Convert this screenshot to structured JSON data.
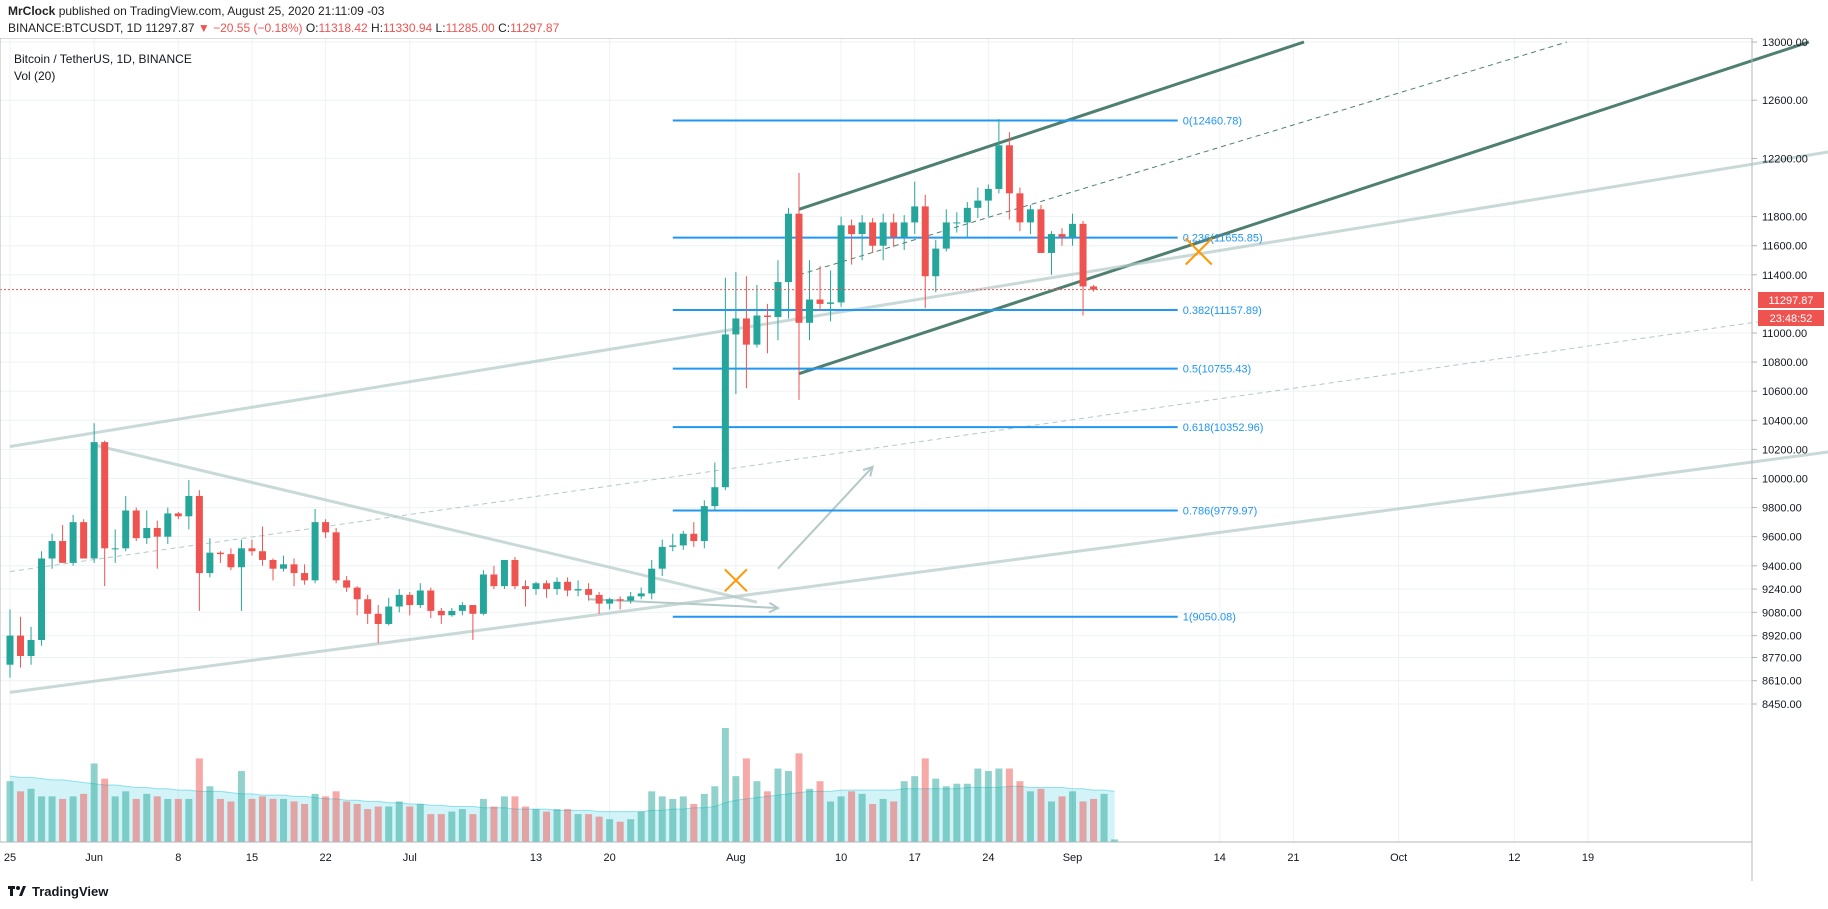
{
  "header": {
    "author": "MrClock",
    "published_text": "published on TradingView.com, August 25, 2020 21:11:09 -03",
    "symbol": "BINANCE:BTCUSDT, 1D",
    "last": "11297.87",
    "change": "▼ −20.55 (−0.18%)",
    "o_label": "O:",
    "o": "11318.42",
    "h_label": "H:",
    "h": "11330.94",
    "l_label": "L:",
    "l": "11285.00",
    "c_label": "C:",
    "c": "11297.87"
  },
  "legend": {
    "title": "Bitcoin / TetherUS, 1D, BINANCE",
    "volume": "Vol (20)"
  },
  "footer": {
    "brand": "TradingView"
  },
  "colors": {
    "up": "#26a69a",
    "down": "#ef5350",
    "fib": "#2196f3",
    "channel": "#4f7f70",
    "trend_light": "#b2c9c7",
    "vol_ma": "#4dd0e1",
    "marker": "#ff9800",
    "grid": "#eef2f5"
  },
  "chart_data": {
    "type": "candlestick",
    "price_axis": {
      "ylim": [
        8300,
        13050
      ],
      "ticks": [
        13000,
        12600,
        12200,
        11800,
        11600,
        11400,
        11000,
        10800,
        10600,
        10400,
        10200,
        10000,
        9800,
        9600,
        9400,
        9240,
        9080,
        8920,
        8770,
        8610,
        8450
      ],
      "tick_labels": [
        "13000.00",
        "12600.00",
        "12200.00",
        "11800.00",
        "11600.00",
        "11400.00",
        "11000.00",
        "10800.00",
        "10600.00",
        "10400.00",
        "10200.00",
        "10000.00",
        "9800.00",
        "9600.00",
        "9400.00",
        "9240.00",
        "9080.00",
        "8920.00",
        "8770.00",
        "8610.00",
        "8450.00"
      ],
      "last_price": 11297.87,
      "last_price_label": "11297.87",
      "countdown": "23:48:52"
    },
    "time_axis": {
      "labels": [
        "25",
        "Jun",
        "8",
        "15",
        "22",
        "Jul",
        "13",
        "20",
        "Aug",
        "10",
        "17",
        "24",
        "Sep",
        "14",
        "21",
        "Oct",
        "12",
        "19"
      ],
      "label_bars": [
        0,
        8,
        16,
        23,
        30,
        38,
        50,
        57,
        69,
        79,
        86,
        93,
        101,
        115,
        122,
        132,
        143,
        150
      ]
    },
    "candles": [
      {
        "o": 8720,
        "h": 9100,
        "l": 8630,
        "c": 8920
      },
      {
        "o": 8920,
        "h": 9050,
        "l": 8700,
        "c": 8780
      },
      {
        "o": 8780,
        "h": 8980,
        "l": 8720,
        "c": 8890
      },
      {
        "o": 8890,
        "h": 9500,
        "l": 8850,
        "c": 9450
      },
      {
        "o": 9450,
        "h": 9620,
        "l": 9380,
        "c": 9570
      },
      {
        "o": 9570,
        "h": 9680,
        "l": 9430,
        "c": 9420
      },
      {
        "o": 9420,
        "h": 9750,
        "l": 9400,
        "c": 9700
      },
      {
        "o": 9700,
        "h": 9720,
        "l": 9450,
        "c": 9450
      },
      {
        "o": 9450,
        "h": 10380,
        "l": 9420,
        "c": 10250
      },
      {
        "o": 10250,
        "h": 10260,
        "l": 9260,
        "c": 9520
      },
      {
        "o": 9520,
        "h": 9650,
        "l": 9420,
        "c": 9520
      },
      {
        "o": 9520,
        "h": 9880,
        "l": 9500,
        "c": 9780
      },
      {
        "o": 9780,
        "h": 9800,
        "l": 9570,
        "c": 9590
      },
      {
        "o": 9590,
        "h": 9780,
        "l": 9550,
        "c": 9660
      },
      {
        "o": 9660,
        "h": 9710,
        "l": 9380,
        "c": 9600
      },
      {
        "o": 9600,
        "h": 9800,
        "l": 9550,
        "c": 9760
      },
      {
        "o": 9760,
        "h": 9770,
        "l": 9720,
        "c": 9740
      },
      {
        "o": 9740,
        "h": 9990,
        "l": 9650,
        "c": 9880
      },
      {
        "o": 9880,
        "h": 9920,
        "l": 9090,
        "c": 9350
      },
      {
        "o": 9350,
        "h": 9590,
        "l": 9320,
        "c": 9490
      },
      {
        "o": 9490,
        "h": 9500,
        "l": 9420,
        "c": 9480
      },
      {
        "o": 9480,
        "h": 9520,
        "l": 9370,
        "c": 9390
      },
      {
        "o": 9390,
        "h": 9580,
        "l": 9090,
        "c": 9520
      },
      {
        "o": 9520,
        "h": 9580,
        "l": 9470,
        "c": 9500
      },
      {
        "o": 9500,
        "h": 9670,
        "l": 9400,
        "c": 9440
      },
      {
        "o": 9440,
        "h": 9450,
        "l": 9300,
        "c": 9380
      },
      {
        "o": 9380,
        "h": 9470,
        "l": 9360,
        "c": 9410
      },
      {
        "o": 9410,
        "h": 9450,
        "l": 9260,
        "c": 9350
      },
      {
        "o": 9350,
        "h": 9410,
        "l": 9270,
        "c": 9300
      },
      {
        "o": 9300,
        "h": 9790,
        "l": 9280,
        "c": 9700
      },
      {
        "o": 9700,
        "h": 9720,
        "l": 9590,
        "c": 9630
      },
      {
        "o": 9630,
        "h": 9660,
        "l": 9280,
        "c": 9300
      },
      {
        "o": 9300,
        "h": 9330,
        "l": 9220,
        "c": 9250
      },
      {
        "o": 9250,
        "h": 9260,
        "l": 9060,
        "c": 9170
      },
      {
        "o": 9170,
        "h": 9200,
        "l": 9000,
        "c": 9070
      },
      {
        "o": 9070,
        "h": 9130,
        "l": 8870,
        "c": 9000
      },
      {
        "o": 9000,
        "h": 9180,
        "l": 8990,
        "c": 9120
      },
      {
        "o": 9120,
        "h": 9240,
        "l": 9080,
        "c": 9200
      },
      {
        "o": 9200,
        "h": 9220,
        "l": 9060,
        "c": 9130
      },
      {
        "o": 9130,
        "h": 9280,
        "l": 9110,
        "c": 9230
      },
      {
        "o": 9230,
        "h": 9250,
        "l": 9040,
        "c": 9090
      },
      {
        "o": 9090,
        "h": 9110,
        "l": 9000,
        "c": 9060
      },
      {
        "o": 9060,
        "h": 9110,
        "l": 9050,
        "c": 9090
      },
      {
        "o": 9090,
        "h": 9150,
        "l": 9060,
        "c": 9130
      },
      {
        "o": 9130,
        "h": 9130,
        "l": 8890,
        "c": 9070
      },
      {
        "o": 9070,
        "h": 9370,
        "l": 9060,
        "c": 9340
      },
      {
        "o": 9340,
        "h": 9400,
        "l": 9240,
        "c": 9260
      },
      {
        "o": 9260,
        "h": 9440,
        "l": 9240,
        "c": 9440
      },
      {
        "o": 9440,
        "h": 9460,
        "l": 9240,
        "c": 9260
      },
      {
        "o": 9260,
        "h": 9300,
        "l": 9120,
        "c": 9240
      },
      {
        "o": 9240,
        "h": 9290,
        "l": 9200,
        "c": 9280
      },
      {
        "o": 9280,
        "h": 9300,
        "l": 9180,
        "c": 9240
      },
      {
        "o": 9240,
        "h": 9320,
        "l": 9200,
        "c": 9290
      },
      {
        "o": 9290,
        "h": 9320,
        "l": 9190,
        "c": 9230
      },
      {
        "o": 9230,
        "h": 9300,
        "l": 9190,
        "c": 9240
      },
      {
        "o": 9240,
        "h": 9280,
        "l": 9160,
        "c": 9200
      },
      {
        "o": 9200,
        "h": 9220,
        "l": 9070,
        "c": 9140
      },
      {
        "o": 9140,
        "h": 9180,
        "l": 9100,
        "c": 9170
      },
      {
        "o": 9170,
        "h": 9190,
        "l": 9100,
        "c": 9160
      },
      {
        "o": 9160,
        "h": 9220,
        "l": 9140,
        "c": 9190
      },
      {
        "o": 9190,
        "h": 9250,
        "l": 9170,
        "c": 9210
      },
      {
        "o": 9210,
        "h": 9440,
        "l": 9170,
        "c": 9380
      },
      {
        "o": 9380,
        "h": 9580,
        "l": 9330,
        "c": 9530
      },
      {
        "o": 9530,
        "h": 9620,
        "l": 9500,
        "c": 9540
      },
      {
        "o": 9540,
        "h": 9640,
        "l": 9510,
        "c": 9620
      },
      {
        "o": 9620,
        "h": 9700,
        "l": 9530,
        "c": 9570
      },
      {
        "o": 9570,
        "h": 9850,
        "l": 9520,
        "c": 9810
      },
      {
        "o": 9810,
        "h": 10110,
        "l": 9780,
        "c": 9940
      },
      {
        "o": 9940,
        "h": 11380,
        "l": 9920,
        "c": 10990
      },
      {
        "o": 10990,
        "h": 11420,
        "l": 10580,
        "c": 11100
      },
      {
        "o": 11100,
        "h": 11390,
        "l": 10620,
        "c": 10920
      },
      {
        "o": 10920,
        "h": 11330,
        "l": 10900,
        "c": 11120
      },
      {
        "o": 11120,
        "h": 11200,
        "l": 10860,
        "c": 11110
      },
      {
        "o": 11110,
        "h": 11500,
        "l": 10950,
        "c": 11350
      },
      {
        "o": 11350,
        "h": 11860,
        "l": 11100,
        "c": 11820
      },
      {
        "o": 11820,
        "h": 12100,
        "l": 10540,
        "c": 11070
      },
      {
        "o": 11070,
        "h": 11500,
        "l": 10950,
        "c": 11230
      },
      {
        "o": 11230,
        "h": 11460,
        "l": 11150,
        "c": 11200
      },
      {
        "o": 11200,
        "h": 11430,
        "l": 11080,
        "c": 11210
      },
      {
        "o": 11210,
        "h": 11800,
        "l": 11180,
        "c": 11740
      },
      {
        "o": 11740,
        "h": 11780,
        "l": 11470,
        "c": 11680
      },
      {
        "o": 11680,
        "h": 11810,
        "l": 11500,
        "c": 11760
      },
      {
        "o": 11760,
        "h": 11790,
        "l": 11550,
        "c": 11600
      },
      {
        "o": 11600,
        "h": 11820,
        "l": 11500,
        "c": 11760
      },
      {
        "o": 11760,
        "h": 11820,
        "l": 11590,
        "c": 11660
      },
      {
        "o": 11660,
        "h": 11810,
        "l": 11570,
        "c": 11760
      },
      {
        "o": 11760,
        "h": 12040,
        "l": 11680,
        "c": 11870
      },
      {
        "o": 11870,
        "h": 11950,
        "l": 11170,
        "c": 11390
      },
      {
        "o": 11390,
        "h": 11640,
        "l": 11280,
        "c": 11580
      },
      {
        "o": 11580,
        "h": 11850,
        "l": 11560,
        "c": 11760
      },
      {
        "o": 11760,
        "h": 11830,
        "l": 11690,
        "c": 11760
      },
      {
        "o": 11760,
        "h": 11900,
        "l": 11660,
        "c": 11860
      },
      {
        "o": 11860,
        "h": 12000,
        "l": 11790,
        "c": 11910
      },
      {
        "o": 11910,
        "h": 12020,
        "l": 11800,
        "c": 11990
      },
      {
        "o": 11990,
        "h": 12470,
        "l": 11960,
        "c": 12290
      },
      {
        "o": 12290,
        "h": 12380,
        "l": 11780,
        "c": 11960
      },
      {
        "o": 11960,
        "h": 12000,
        "l": 11700,
        "c": 11760
      },
      {
        "o": 11760,
        "h": 11880,
        "l": 11680,
        "c": 11850
      },
      {
        "o": 11850,
        "h": 11880,
        "l": 11550,
        "c": 11550
      },
      {
        "o": 11550,
        "h": 11700,
        "l": 11400,
        "c": 11680
      },
      {
        "o": 11680,
        "h": 11720,
        "l": 11600,
        "c": 11660
      },
      {
        "o": 11660,
        "h": 11820,
        "l": 11600,
        "c": 11750
      },
      {
        "o": 11750,
        "h": 11770,
        "l": 11120,
        "c": 11320
      },
      {
        "o": 11320,
        "h": 11330,
        "l": 11285,
        "c": 11298
      }
    ],
    "volumes": [
      48,
      40,
      42,
      36,
      36,
      34,
      36,
      38,
      62,
      50,
      36,
      40,
      34,
      38,
      36,
      34,
      34,
      34,
      66,
      44,
      34,
      32,
      56,
      34,
      36,
      34,
      34,
      32,
      30,
      38,
      36,
      40,
      32,
      30,
      26,
      28,
      28,
      32,
      28,
      30,
      22,
      22,
      24,
      26,
      22,
      34,
      28,
      36,
      36,
      28,
      26,
      24,
      26,
      26,
      22,
      22,
      20,
      18,
      16,
      18,
      24,
      40,
      36,
      34,
      36,
      30,
      38,
      44,
      90,
      52,
      66,
      48,
      40,
      58,
      56,
      70,
      42,
      48,
      32,
      36,
      40,
      38,
      30,
      34,
      32,
      48,
      52,
      66,
      50,
      44,
      46,
      46,
      58,
      56,
      58,
      58,
      48,
      40,
      42,
      32,
      36,
      40,
      32,
      34,
      38,
      2
    ],
    "volume_ma": [
      52,
      51,
      51,
      50,
      49,
      49,
      48,
      47,
      46,
      45,
      45,
      44,
      43,
      43,
      42,
      42,
      41,
      41,
      40,
      40,
      40,
      39,
      38,
      38,
      37,
      37,
      37,
      36,
      36,
      35,
      34,
      34,
      33,
      33,
      32,
      32,
      31,
      31,
      30,
      30,
      29,
      29,
      28,
      28,
      28,
      27,
      27,
      27,
      26,
      26,
      26,
      26,
      25,
      25,
      25,
      25,
      24,
      24,
      24,
      24,
      24,
      25,
      25,
      26,
      26,
      27,
      27,
      28,
      31,
      33,
      34,
      35,
      36,
      37,
      38,
      39,
      40,
      40,
      40,
      41,
      41,
      41,
      41,
      41,
      41,
      42,
      42,
      42,
      42,
      42,
      42,
      43,
      43,
      43,
      43,
      44,
      44,
      43,
      43,
      43,
      43,
      42,
      42,
      41,
      41,
      40
    ],
    "fibonacci": [
      {
        "label": "0(12460.78)",
        "price": 12460.78
      },
      {
        "label": "0.236(11655.85)",
        "price": 11655.85
      },
      {
        "label": "0.382(11157.89)",
        "price": 11157.89
      },
      {
        "label": "0.5(10755.43)",
        "price": 10755.43
      },
      {
        "label": "0.618(10352.96)",
        "price": 10352.96
      },
      {
        "label": "0.786(9779.97)",
        "price": 9779.97
      },
      {
        "label": "1(9050.08)",
        "price": 9050.08
      }
    ],
    "fib_bars": [
      63,
      111
    ],
    "lines": [
      {
        "style": "channel",
        "from": [
          75,
          11850
        ],
        "to": [
          123,
          13000
        ]
      },
      {
        "style": "channel",
        "from": [
          75,
          10720
        ],
        "to": [
          171,
          13000
        ]
      },
      {
        "style": "dashed",
        "from": [
          75,
          11400
        ],
        "to": [
          148,
          13000
        ]
      },
      {
        "style": "light",
        "from": [
          0,
          10220
        ],
        "to": [
          181,
          12340
        ]
      },
      {
        "style": "light",
        "from": [
          0,
          8530
        ],
        "to": [
          181,
          10260
        ]
      },
      {
        "style": "light",
        "from": [
          8,
          10230
        ],
        "to": [
          71,
          9150
        ]
      },
      {
        "style": "lightdash",
        "from": [
          0,
          9360
        ],
        "to": [
          181,
          11230
        ]
      },
      {
        "style": "arrow",
        "from": [
          73,
          9380
        ],
        "to": [
          82,
          10080
        ]
      },
      {
        "style": "arrow",
        "from": [
          55,
          9170
        ],
        "to": [
          73,
          9110
        ]
      }
    ],
    "markers": [
      {
        "bar": 69,
        "price": 9300,
        "size": 11
      },
      {
        "bar": 113,
        "price": 11560,
        "size": 13
      }
    ]
  }
}
